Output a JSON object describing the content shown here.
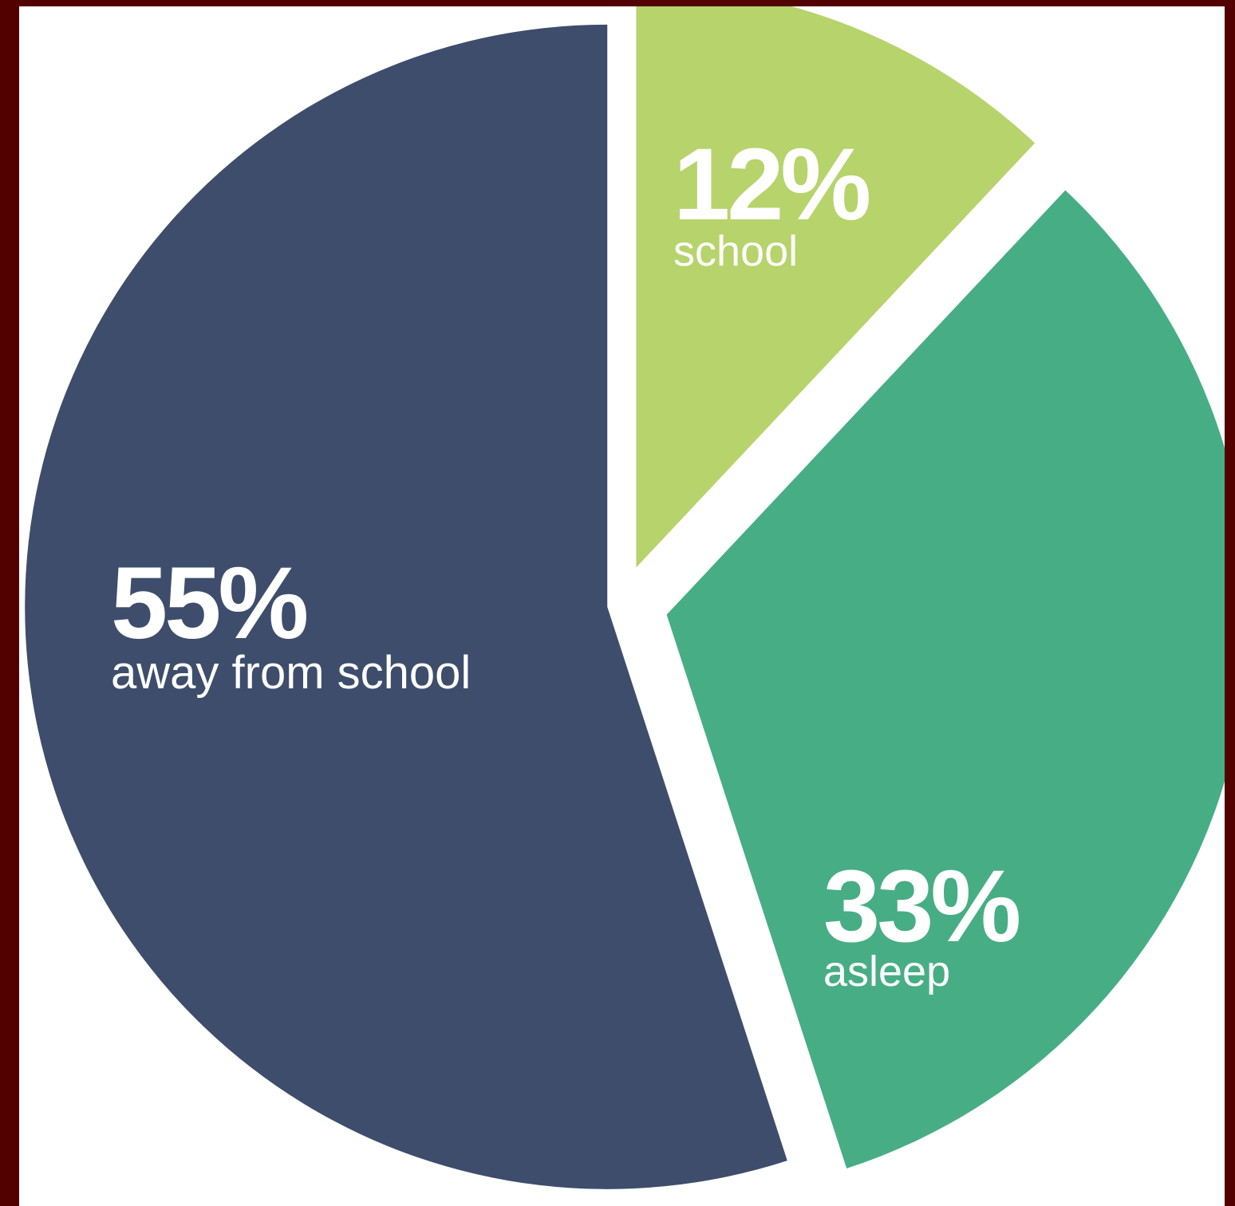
{
  "chart_data": {
    "type": "pie",
    "categories": [
      "away from school",
      "school",
      "asleep"
    ],
    "values": [
      55,
      12,
      33
    ],
    "value_labels": [
      "55%",
      "12%",
      "33%"
    ],
    "colors": [
      "#3d4d6b",
      "#b7d36b",
      "#47ad85"
    ],
    "exploded": true,
    "legend": "none"
  }
}
